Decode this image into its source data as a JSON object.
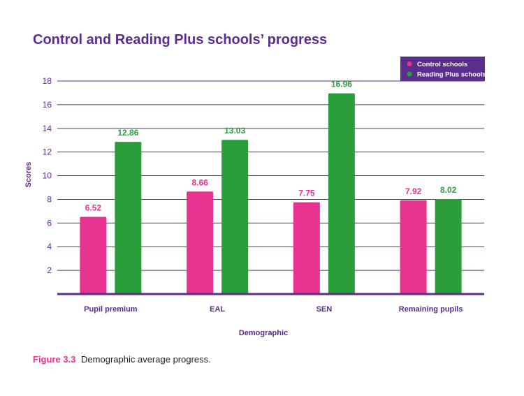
{
  "chart_data": {
    "type": "bar",
    "title": "Control and Reading Plus schools’ progress",
    "xlabel": "Demographic",
    "ylabel": "Scores",
    "ylim": [
      0,
      18
    ],
    "yticks": [
      "2",
      "4",
      "6",
      "8",
      "10",
      "12",
      "14",
      "16",
      "18"
    ],
    "categories": [
      "Pupil premium",
      "EAL",
      "SEN",
      "Remaining pupils"
    ],
    "series": [
      {
        "name": "Control schools",
        "color": "#e6338f",
        "values": [
          6.52,
          8.66,
          7.75,
          7.92
        ],
        "labels": [
          "6.52",
          "8.66",
          "7.75",
          "7.92"
        ]
      },
      {
        "name": "Reading Plus schools",
        "color": "#2b9e3c",
        "values": [
          12.86,
          13.03,
          16.96,
          8.02
        ],
        "labels": [
          "12.86",
          "13.03",
          "16.96",
          "8.02"
        ]
      }
    ],
    "grid": true,
    "legend_position": "top-right"
  },
  "caption": {
    "figure_label": "Figure 3.3",
    "text": "Demographic average progress."
  }
}
